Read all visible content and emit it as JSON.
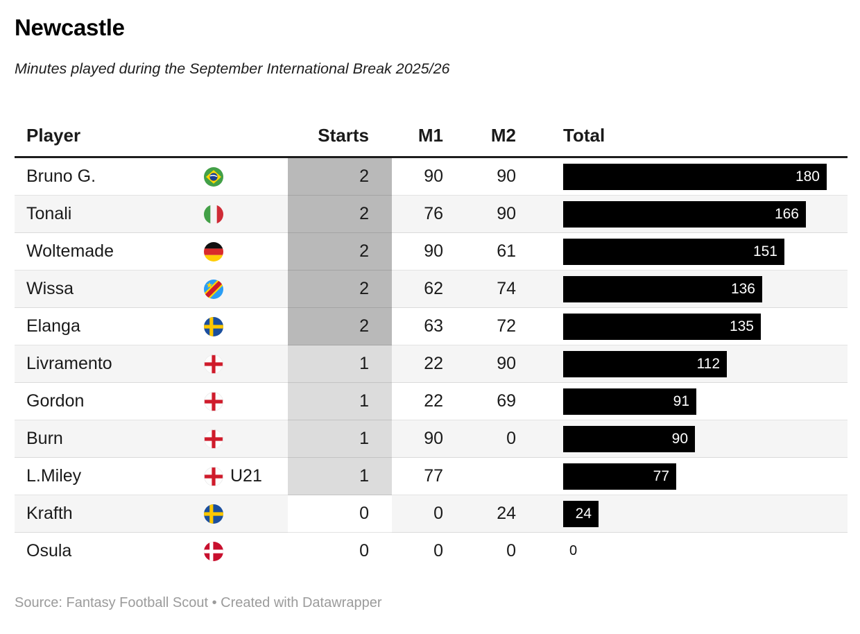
{
  "header": {
    "title": "Newcastle",
    "subtitle": "Minutes played during the September International Break 2025/26"
  },
  "table": {
    "columns": {
      "player": "Player",
      "starts": "Starts",
      "m1": "M1",
      "m2": "M2",
      "total": "Total"
    }
  },
  "chart_data": {
    "type": "table",
    "title": "Newcastle",
    "subtitle": "Minutes played during the September International Break 2025/26",
    "columns": [
      "Player",
      "Starts",
      "M1",
      "M2",
      "Total"
    ],
    "bar_column": "Total",
    "bar_range": [
      0,
      180
    ],
    "starts_heatmap": {
      "2": "#b9b9b9",
      "1": "#dcdcdc",
      "0": "#ffffff"
    },
    "rows": [
      {
        "player": "Bruno G.",
        "flag": "brazil",
        "starts": 2,
        "m1": 90,
        "m2": 90,
        "total": 180
      },
      {
        "player": "Tonali",
        "flag": "italy",
        "starts": 2,
        "m1": 76,
        "m2": 90,
        "total": 166
      },
      {
        "player": "Woltemade",
        "flag": "germany",
        "starts": 2,
        "m1": 90,
        "m2": 61,
        "total": 151
      },
      {
        "player": "Wissa",
        "flag": "dr-congo",
        "starts": 2,
        "m1": 62,
        "m2": 74,
        "total": 136
      },
      {
        "player": "Elanga",
        "flag": "sweden",
        "starts": 2,
        "m1": 63,
        "m2": 72,
        "total": 135
      },
      {
        "player": "Livramento",
        "flag": "england",
        "starts": 1,
        "m1": 22,
        "m2": 90,
        "total": 112
      },
      {
        "player": "Gordon",
        "flag": "england",
        "starts": 1,
        "m1": 22,
        "m2": 69,
        "total": 91
      },
      {
        "player": "Burn",
        "flag": "england",
        "starts": 1,
        "m1": 90,
        "m2": 0,
        "total": 90
      },
      {
        "player": "L.Miley",
        "flag": "england",
        "flag_label": "U21",
        "starts": 1,
        "m1": 77,
        "m2": null,
        "total": 77
      },
      {
        "player": "Krafth",
        "flag": "sweden",
        "starts": 0,
        "m1": 0,
        "m2": 24,
        "total": 24
      },
      {
        "player": "Osula",
        "flag": "denmark",
        "starts": 0,
        "m1": 0,
        "m2": 0,
        "total": 0
      }
    ]
  },
  "footer": {
    "source": "Source: Fantasy Football Scout • Created with Datawrapper"
  },
  "colors": {
    "bar": "#000000",
    "bar_label": "#ffffff",
    "row_stripe": "#f5f5f5",
    "starts_heat_2": "#b9b9b9",
    "starts_heat_1": "#dcdcdc",
    "starts_heat_0": "#ffffff",
    "header_rule": "#1d1d1d",
    "footer_text": "#9b9b9b"
  }
}
